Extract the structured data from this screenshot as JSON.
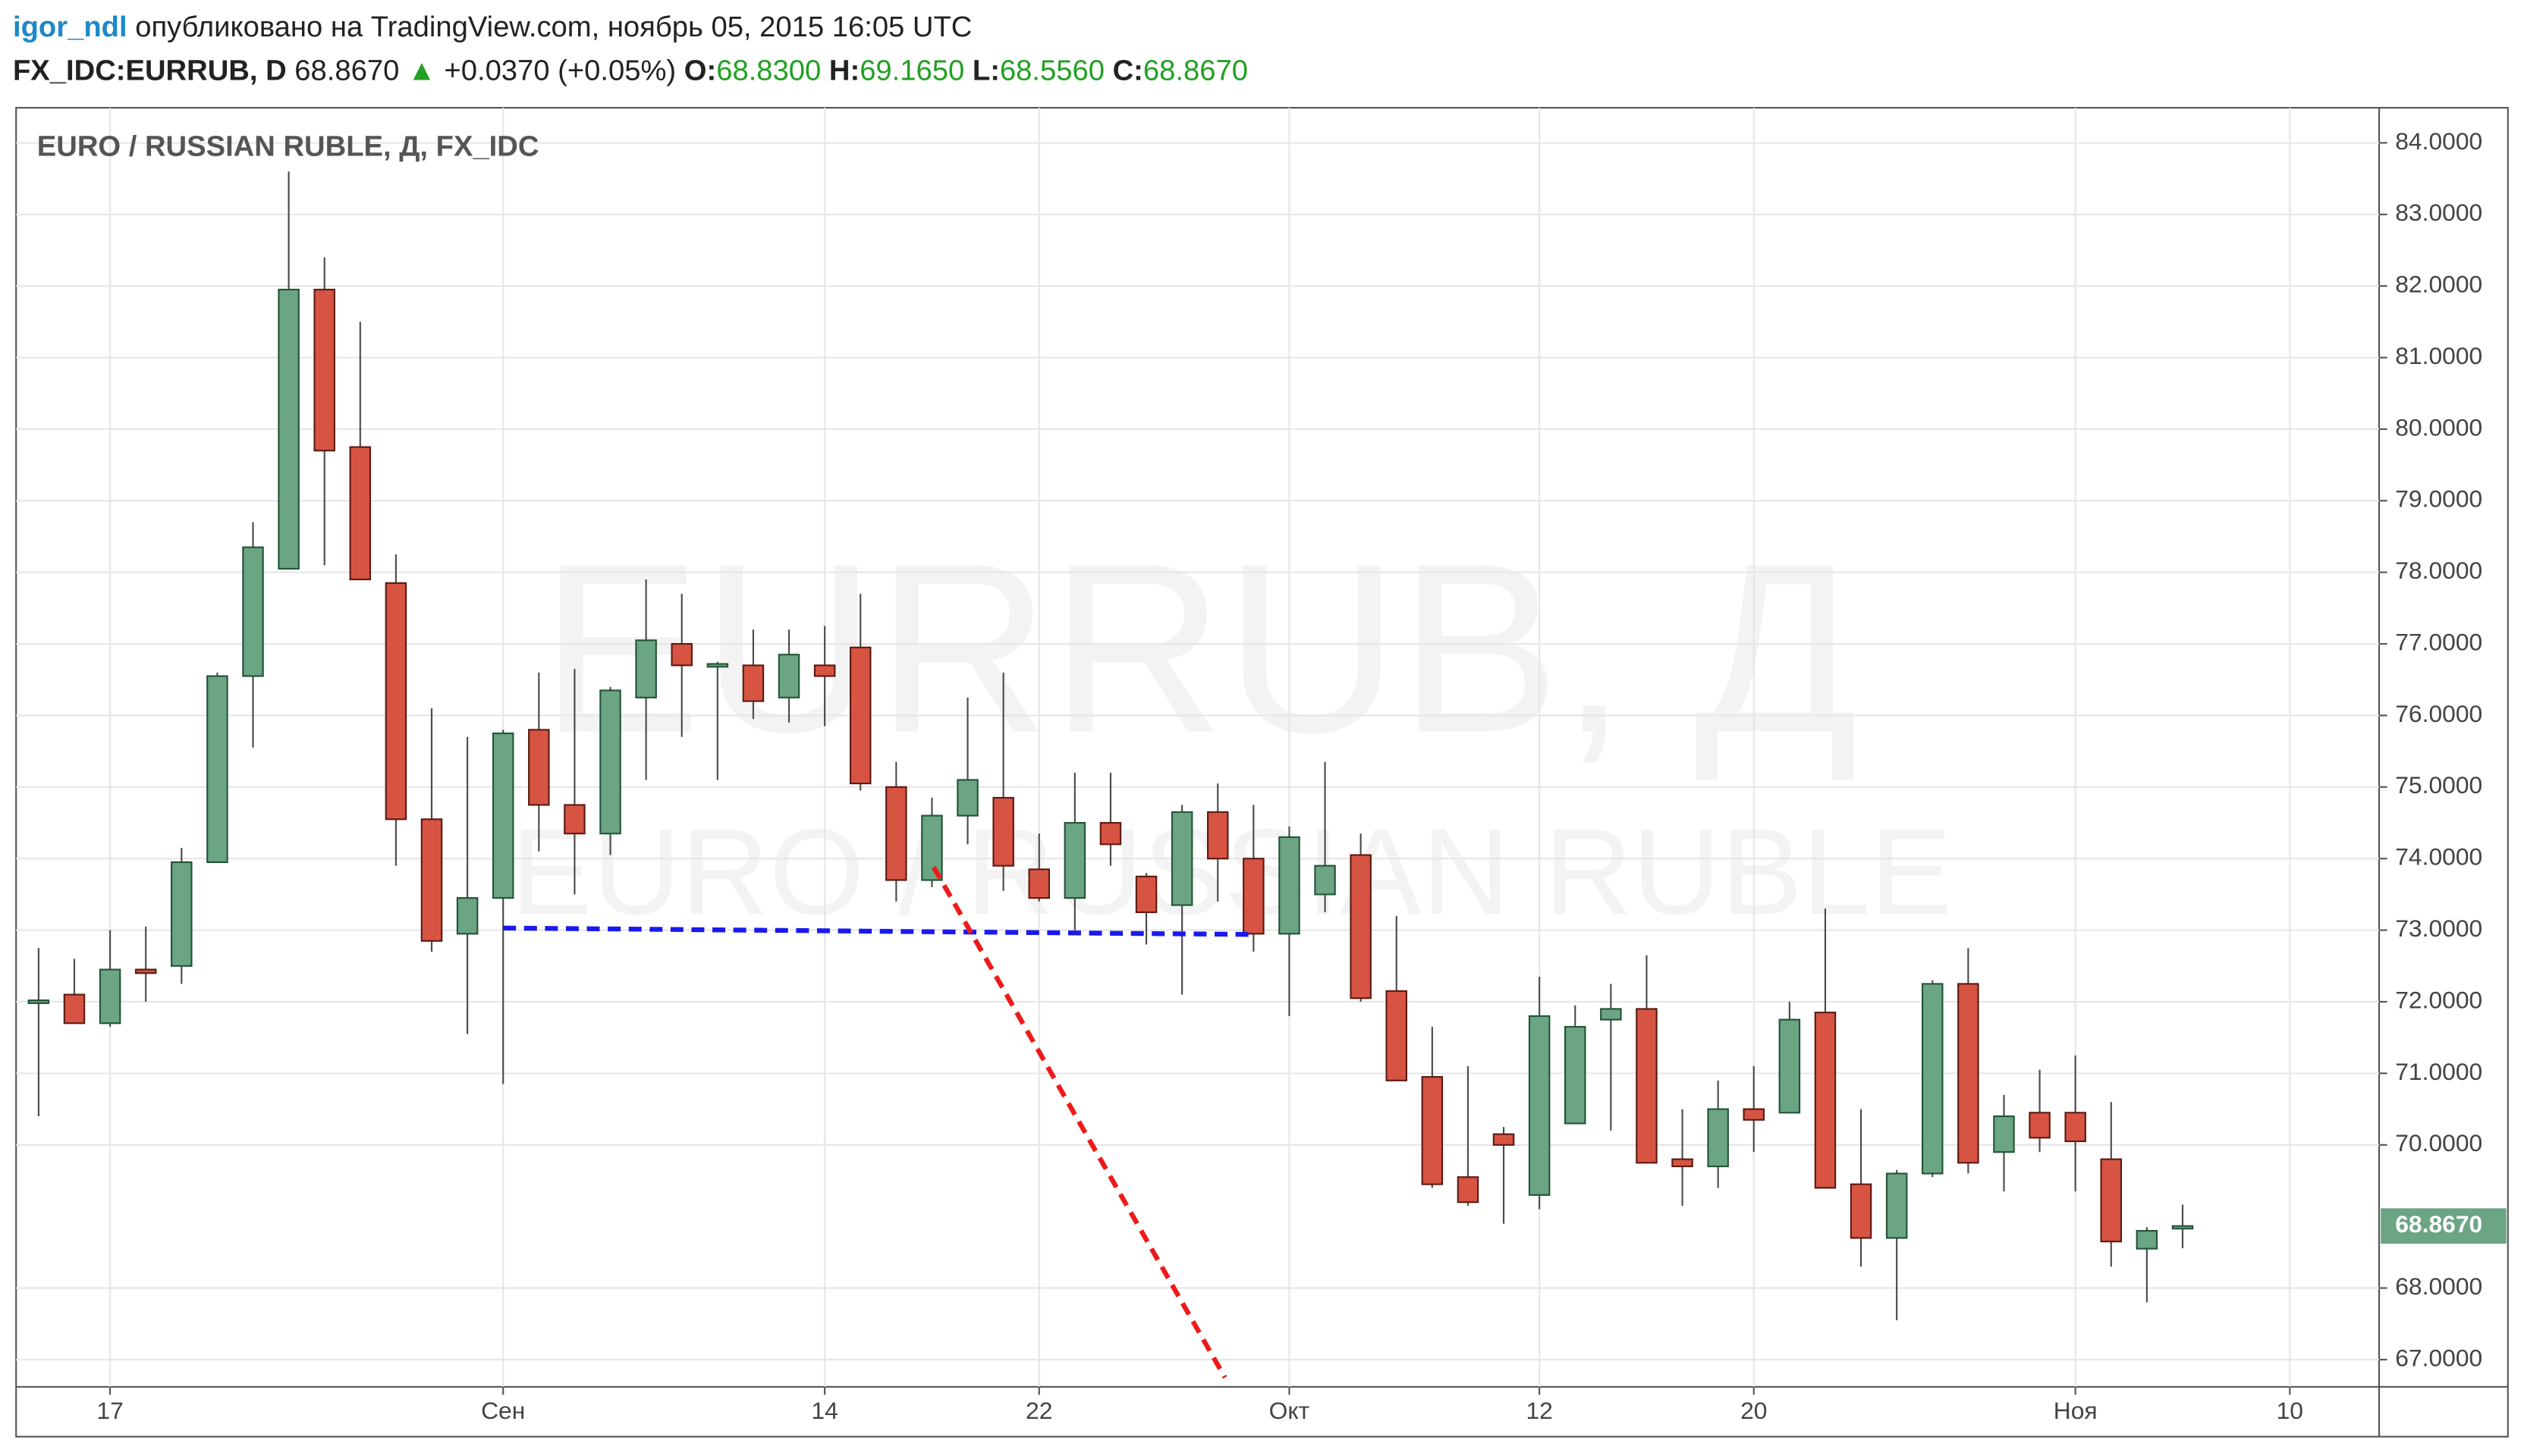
{
  "header": {
    "author": "igor_ndl",
    "published": "опубликовано на TradingView.com, ноябрь 05, 2015 16:05 UTC",
    "symbol": "FX_IDC:EURRUB, D",
    "price": "68.8670",
    "change_icon": "▲",
    "change": "+0.0370 (+0.05%)",
    "o_label": "O:",
    "o": "68.8300",
    "h_label": "H:",
    "h": "69.1650",
    "l_label": "L:",
    "l": "68.5560",
    "c_label": "C:",
    "c": "68.8670"
  },
  "chart_data": {
    "type": "candlestick",
    "title": "EURO / RUSSIAN RUBLE, Д, FX_IDC",
    "watermark": "EURRUB, Д",
    "watermark_subtitle": "EURO / RUSSIAN RUBLE",
    "up_color": "#6ba583",
    "down_color": "#d75442",
    "up_border": "#225437",
    "down_border": "#5b1a13",
    "grid": true,
    "open": [
      71.98,
      72.1,
      71.7,
      72.45,
      72.5,
      73.95,
      76.55,
      78.05,
      81.95,
      79.75,
      77.85,
      74.55,
      72.95,
      73.45,
      75.8,
      74.75,
      74.35,
      76.25,
      77.0,
      76.68,
      76.7,
      76.25,
      76.7,
      76.95,
      75.0,
      73.7,
      74.6,
      74.85,
      73.85,
      73.45,
      74.5,
      73.75,
      73.35,
      74.65,
      74.0,
      72.95,
      73.5,
      74.05,
      72.15,
      70.95,
      69.55,
      70.15,
      69.3,
      70.3,
      71.75,
      71.9,
      69.8,
      69.7,
      70.5,
      70.45,
      71.85,
      69.45,
      68.7,
      69.6,
      72.25,
      69.9,
      70.45,
      70.45,
      69.8,
      68.55,
      68.83
    ],
    "high": [
      72.75,
      72.6,
      73.0,
      73.05,
      74.15,
      76.6,
      78.7,
      83.6,
      82.4,
      81.5,
      78.25,
      76.1,
      75.7,
      75.8,
      76.6,
      76.65,
      76.4,
      77.9,
      77.7,
      76.75,
      77.2,
      77.2,
      77.25,
      77.7,
      75.35,
      74.85,
      76.25,
      76.6,
      74.35,
      75.2,
      75.2,
      73.8,
      74.75,
      75.05,
      74.75,
      74.45,
      75.35,
      74.35,
      73.2,
      71.65,
      71.1,
      70.25,
      72.35,
      71.95,
      72.25,
      72.65,
      70.5,
      70.9,
      71.1,
      72.0,
      73.3,
      70.5,
      69.65,
      72.3,
      72.75,
      70.7,
      71.05,
      71.25,
      70.6,
      68.85,
      69.165
    ],
    "low": [
      70.4,
      71.7,
      71.65,
      72.0,
      72.25,
      73.95,
      75.55,
      78.05,
      78.1,
      77.9,
      73.9,
      72.7,
      71.55,
      70.85,
      74.1,
      73.5,
      74.05,
      75.1,
      75.7,
      75.1,
      75.95,
      75.9,
      75.85,
      74.95,
      73.4,
      73.6,
      74.2,
      73.55,
      73.4,
      73.0,
      73.9,
      72.8,
      72.1,
      73.4,
      72.7,
      71.8,
      73.25,
      72.0,
      70.9,
      69.4,
      69.15,
      68.9,
      69.1,
      70.3,
      70.2,
      69.75,
      69.15,
      69.4,
      69.9,
      70.45,
      69.4,
      68.3,
      67.55,
      69.55,
      69.6,
      69.35,
      69.9,
      69.35,
      68.3,
      67.8,
      68.556
    ],
    "close": [
      72.02,
      71.7,
      72.45,
      72.4,
      73.95,
      76.55,
      78.35,
      81.95,
      79.7,
      77.9,
      74.55,
      72.85,
      73.45,
      75.75,
      74.75,
      74.35,
      76.35,
      77.05,
      76.7,
      76.72,
      76.2,
      76.85,
      76.55,
      75.05,
      73.7,
      74.6,
      75.1,
      73.9,
      73.45,
      74.5,
      74.2,
      73.25,
      74.65,
      74.0,
      72.95,
      74.3,
      73.9,
      72.05,
      70.9,
      69.45,
      69.2,
      70.0,
      71.8,
      71.65,
      71.9,
      69.75,
      69.7,
      70.5,
      70.35,
      71.75,
      69.4,
      68.7,
      69.6,
      72.25,
      69.75,
      70.4,
      70.1,
      70.05,
      68.65,
      68.8,
      68.867
    ],
    "xlim": [
      -0.63,
      65.5
    ],
    "xticks": [
      {
        "value": 2,
        "label": "17"
      },
      {
        "value": 13,
        "label": "Сен"
      },
      {
        "value": 22,
        "label": "14"
      },
      {
        "value": 28,
        "label": "22"
      },
      {
        "value": 35,
        "label": "Окт"
      },
      {
        "value": 42,
        "label": "12"
      },
      {
        "value": 48,
        "label": "20"
      },
      {
        "value": 57,
        "label": "Ноя"
      },
      {
        "value": 63,
        "label": "10"
      }
    ],
    "ylim": [
      66.62,
      84.49
    ],
    "yticks": [
      {
        "value": 67,
        "label": "67.0000"
      },
      {
        "value": 68,
        "label": "68.0000"
      },
      {
        "value": 70,
        "label": "70.0000"
      },
      {
        "value": 71,
        "label": "71.0000"
      },
      {
        "value": 72,
        "label": "72.0000"
      },
      {
        "value": 73,
        "label": "73.0000"
      },
      {
        "value": 74,
        "label": "74.0000"
      },
      {
        "value": 75,
        "label": "75.0000"
      },
      {
        "value": 76,
        "label": "76.0000"
      },
      {
        "value": 77,
        "label": "77.0000"
      },
      {
        "value": 78,
        "label": "78.0000"
      },
      {
        "value": 79,
        "label": "79.0000"
      },
      {
        "value": 80,
        "label": "80.0000"
      },
      {
        "value": 81,
        "label": "81.0000"
      },
      {
        "value": 82,
        "label": "82.0000"
      },
      {
        "value": 83,
        "label": "83.0000"
      },
      {
        "value": 84,
        "label": "84.0000"
      }
    ],
    "last_price": {
      "value": 68.867,
      "label": "68.8670",
      "color": "#6ba583"
    },
    "lines": [
      {
        "color": "#1a1aee",
        "x": [
          13,
          34
        ],
        "y": [
          73.03,
          72.94
        ]
      },
      {
        "color": "#ee1a1a",
        "x": [
          25.05,
          33.2
        ],
        "y": [
          73.88,
          66.75
        ]
      }
    ]
  }
}
